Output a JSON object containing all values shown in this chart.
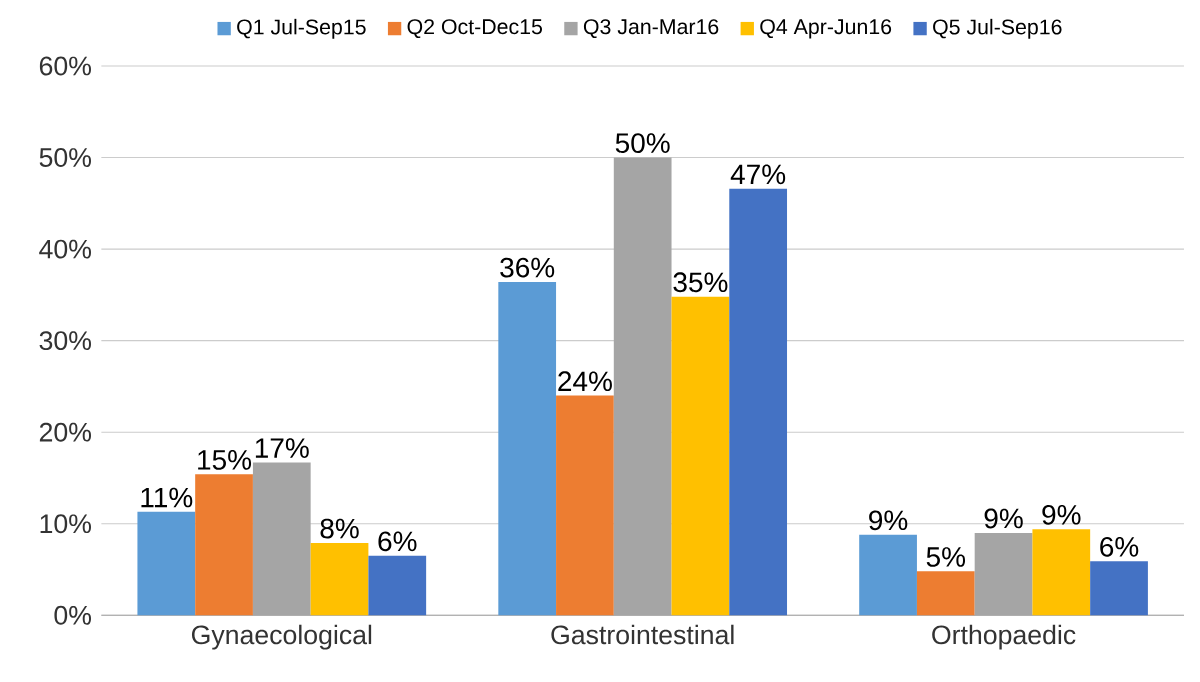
{
  "chart_data": {
    "type": "bar",
    "categories": [
      "Gynaecological",
      "Gastrointestinal",
      "Orthopaedic"
    ],
    "series": [
      {
        "name": "Q1 Jul-Sep15",
        "color": "#5b9bd5",
        "values": [
          11.3,
          36.4,
          8.8
        ],
        "value_labels": [
          "11%",
          "36%",
          "9%"
        ]
      },
      {
        "name": "Q2 Oct-Dec15",
        "color": "#ed7d31",
        "values": [
          15.4,
          24,
          4.8
        ],
        "value_labels": [
          "15%",
          "24%",
          "5%"
        ]
      },
      {
        "name": "Q3 Jan-Mar16",
        "color": "#a5a5a5",
        "values": [
          16.7,
          50,
          9
        ],
        "value_labels": [
          "17%",
          "50%",
          "9%"
        ]
      },
      {
        "name": "Q4 Apr-Jun16",
        "color": "#ffc000",
        "values": [
          7.9,
          34.8,
          9.4
        ],
        "value_labels": [
          "8%",
          "35%",
          "9%"
        ]
      },
      {
        "name": "Q5 Jul-Sep16",
        "color": "#4472c4",
        "values": [
          6.5,
          46.6,
          5.9
        ],
        "value_labels": [
          "6%",
          "47%",
          "6%"
        ]
      }
    ],
    "ylim": [
      0,
      60
    ],
    "yticks": [
      {
        "value": 0,
        "label": "0%"
      },
      {
        "value": 10,
        "label": "10%"
      },
      {
        "value": 20,
        "label": "20%"
      },
      {
        "value": 30,
        "label": "30%"
      },
      {
        "value": 40,
        "label": "40%"
      },
      {
        "value": 50,
        "label": "50%"
      },
      {
        "value": 60,
        "label": "60%"
      }
    ],
    "grid": "y",
    "legend": "top"
  }
}
